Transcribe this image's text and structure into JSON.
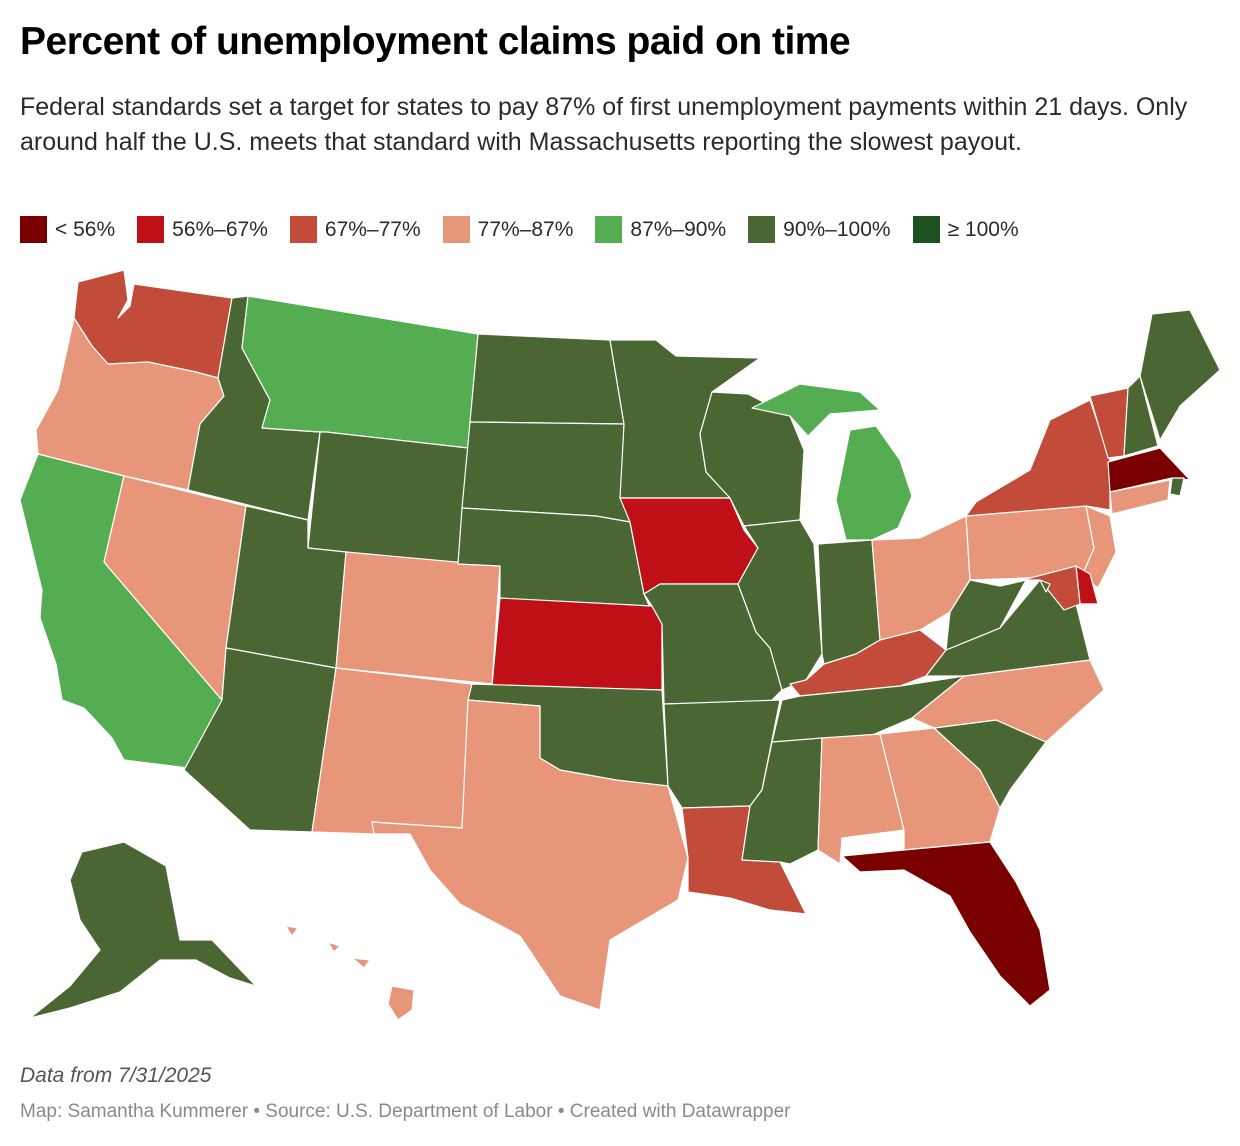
{
  "title": "Percent of unemployment claims paid on time",
  "subtitle": "Federal standards set a target for states to pay 87% of first unemployment payments within 21 days. Only around half the U.S. meets that standard with Massachusetts reporting the slowest payout.",
  "legend": [
    {
      "label": "< 56%",
      "color": "#7a0000"
    },
    {
      "label": "56%–67%",
      "color": "#bf1018"
    },
    {
      "label": "67%–77%",
      "color": "#c24b39"
    },
    {
      "label": "77%–87%",
      "color": "#e8967a"
    },
    {
      "label": "87%–90%",
      "color": "#55ad52"
    },
    {
      "label": "90%–100%",
      "color": "#4a6632"
    },
    {
      "label": "≥ 100%",
      "color": "#1d5220"
    }
  ],
  "map_data": {
    "type": "choropleth",
    "regions": [
      {
        "state": "WA",
        "bin": 2
      },
      {
        "state": "OR",
        "bin": 3
      },
      {
        "state": "CA",
        "bin": 4
      },
      {
        "state": "NV",
        "bin": 3
      },
      {
        "state": "ID",
        "bin": 5
      },
      {
        "state": "MT",
        "bin": 4
      },
      {
        "state": "WY",
        "bin": 5
      },
      {
        "state": "UT",
        "bin": 5
      },
      {
        "state": "AZ",
        "bin": 5
      },
      {
        "state": "CO",
        "bin": 3
      },
      {
        "state": "NM",
        "bin": 3
      },
      {
        "state": "ND",
        "bin": 5
      },
      {
        "state": "SD",
        "bin": 5
      },
      {
        "state": "NE",
        "bin": 5
      },
      {
        "state": "KS",
        "bin": 1
      },
      {
        "state": "OK",
        "bin": 5
      },
      {
        "state": "TX",
        "bin": 3
      },
      {
        "state": "MN",
        "bin": 5
      },
      {
        "state": "IA",
        "bin": 1
      },
      {
        "state": "MO",
        "bin": 5
      },
      {
        "state": "AR",
        "bin": 5
      },
      {
        "state": "LA",
        "bin": 2
      },
      {
        "state": "WI",
        "bin": 5
      },
      {
        "state": "IL",
        "bin": 5
      },
      {
        "state": "MI",
        "bin": 4
      },
      {
        "state": "IN",
        "bin": 5
      },
      {
        "state": "OH",
        "bin": 3
      },
      {
        "state": "KY",
        "bin": 2
      },
      {
        "state": "TN",
        "bin": 5
      },
      {
        "state": "MS",
        "bin": 5
      },
      {
        "state": "AL",
        "bin": 3
      },
      {
        "state": "GA",
        "bin": 3
      },
      {
        "state": "FL",
        "bin": 0
      },
      {
        "state": "SC",
        "bin": 5
      },
      {
        "state": "NC",
        "bin": 3
      },
      {
        "state": "VA",
        "bin": 5
      },
      {
        "state": "WV",
        "bin": 5
      },
      {
        "state": "PA",
        "bin": 3
      },
      {
        "state": "NY",
        "bin": 2
      },
      {
        "state": "VT",
        "bin": 2
      },
      {
        "state": "NH",
        "bin": 5
      },
      {
        "state": "ME",
        "bin": 5
      },
      {
        "state": "MA",
        "bin": 0
      },
      {
        "state": "RI",
        "bin": 5
      },
      {
        "state": "CT",
        "bin": 3
      },
      {
        "state": "NJ",
        "bin": 3
      },
      {
        "state": "DE",
        "bin": 1
      },
      {
        "state": "MD",
        "bin": 2
      },
      {
        "state": "DC",
        "bin": 5
      },
      {
        "state": "AK",
        "bin": 5
      },
      {
        "state": "HI",
        "bin": 3
      }
    ]
  },
  "note": "Data from 7/31/2025",
  "footer": "Map: Samantha Kummerer • Source: U.S. Department of Labor • Created with Datawrapper"
}
